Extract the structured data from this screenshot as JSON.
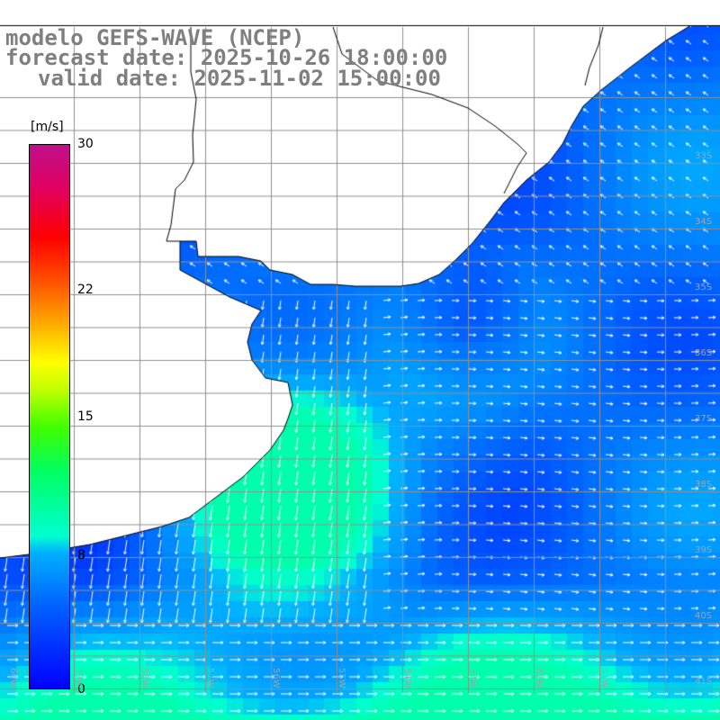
{
  "title": {
    "line1": "modelo GEFS-WAVE (NCEP)",
    "line2": "forecast date: 2025-10-26 18:00:00",
    "line3": "valid date: 2025-11-02 15:00:00"
  },
  "colorbar": {
    "unit": "[m/s]",
    "ticks": [
      "30",
      "22",
      "15",
      "8",
      "0"
    ],
    "tick_values": [
      30,
      22,
      15,
      8,
      0
    ]
  },
  "grid": {
    "lat_labels": [
      "33S",
      "34S",
      "35S",
      "36S",
      "37S",
      "38S",
      "39S",
      "40S",
      "41S"
    ],
    "lon_labels": [
      "60W",
      "59W",
      "58W",
      "57W",
      "56W",
      "55W",
      "54W",
      "53W",
      "52W",
      "51W"
    ]
  },
  "colors": {
    "land": "#ffffff",
    "coastline": "#000000",
    "gridline": "#909090",
    "arrows": "#ffffff",
    "label": "#7f7f7f"
  }
}
